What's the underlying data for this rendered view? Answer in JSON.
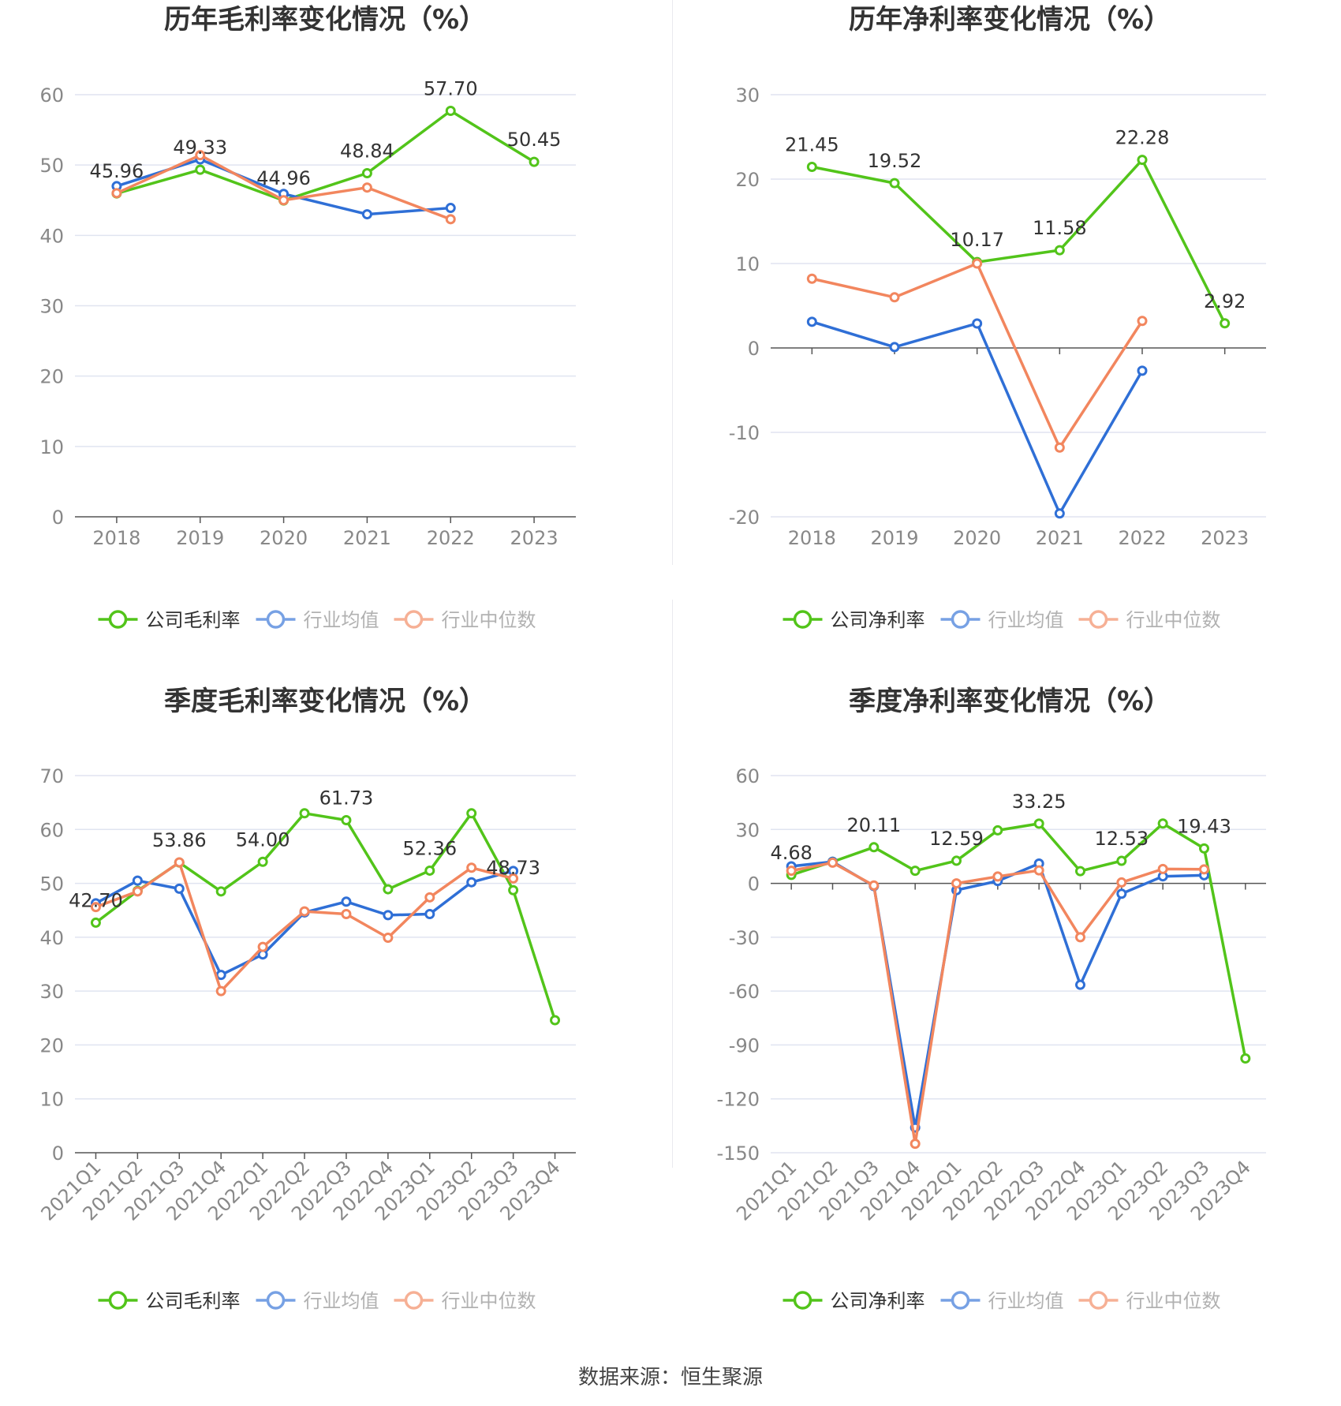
{
  "source_text": "数据来源：恒生聚源",
  "chart_data": [
    {
      "type": "line",
      "title": "历年毛利率变化情况（%）",
      "categories": [
        "2018",
        "2019",
        "2020",
        "2021",
        "2022",
        "2023"
      ],
      "ylim": [
        0,
        60
      ],
      "yticks": [
        0,
        10,
        20,
        30,
        40,
        50,
        60
      ],
      "grid": true,
      "legend_position": "bottom",
      "series": [
        {
          "name": "公司毛利率",
          "color": "#52c41a",
          "values": [
            45.96,
            49.33,
            44.96,
            48.84,
            57.7,
            50.45
          ],
          "labels": [
            "45.96",
            "49.33",
            "44.96",
            "48.84",
            "57.70",
            "50.45"
          ]
        },
        {
          "name": "行业均值",
          "color": "#2f6fd6",
          "values": [
            47.0,
            50.8,
            45.9,
            43.0,
            43.9,
            null
          ]
        },
        {
          "name": "行业中位数",
          "color": "#f2865e",
          "values": [
            46.0,
            51.4,
            45.0,
            46.8,
            42.3,
            null
          ]
        }
      ]
    },
    {
      "type": "line",
      "title": "历年净利率变化情况（%）",
      "categories": [
        "2018",
        "2019",
        "2020",
        "2021",
        "2022",
        "2023"
      ],
      "ylim": [
        -20,
        30
      ],
      "yticks": [
        -20,
        -10,
        0,
        10,
        20,
        30
      ],
      "grid": true,
      "legend_position": "bottom",
      "series": [
        {
          "name": "公司净利率",
          "color": "#52c41a",
          "values": [
            21.45,
            19.52,
            10.17,
            11.58,
            22.28,
            2.92
          ],
          "labels": [
            "21.45",
            "19.52",
            "10.17",
            "11.58",
            "22.28",
            "2.92"
          ]
        },
        {
          "name": "行业均值",
          "color": "#2f6fd6",
          "values": [
            3.1,
            0.1,
            2.9,
            -19.6,
            -2.7,
            null
          ]
        },
        {
          "name": "行业中位数",
          "color": "#f2865e",
          "values": [
            8.2,
            6.0,
            10.0,
            -11.8,
            3.2,
            null
          ]
        }
      ]
    },
    {
      "type": "line",
      "title": "季度毛利率变化情况（%）",
      "categories": [
        "2021Q1",
        "2021Q2",
        "2021Q3",
        "2021Q4",
        "2022Q1",
        "2022Q2",
        "2022Q3",
        "2022Q4",
        "2023Q1",
        "2023Q2",
        "2023Q3",
        "2023Q4"
      ],
      "ylim": [
        0,
        70
      ],
      "yticks": [
        0,
        10,
        20,
        30,
        40,
        50,
        60,
        70
      ],
      "grid": true,
      "legend_position": "bottom",
      "series": [
        {
          "name": "公司毛利率",
          "color": "#52c41a",
          "values": [
            42.7,
            48.6,
            53.86,
            48.5,
            54.0,
            63.0,
            61.73,
            48.9,
            52.36,
            63.0,
            48.73,
            24.6
          ],
          "labels": [
            "42.70",
            "",
            "53.86",
            "",
            "54.00",
            "",
            "61.73",
            "",
            "52.36",
            "",
            "48.73",
            ""
          ]
        },
        {
          "name": "行业均值",
          "color": "#2f6fd6",
          "values": [
            46.3,
            50.5,
            49.0,
            33.0,
            36.8,
            44.6,
            46.6,
            44.1,
            44.3,
            50.2,
            52.3,
            null
          ]
        },
        {
          "name": "行业中位数",
          "color": "#f2865e",
          "values": [
            45.6,
            48.5,
            53.9,
            30.0,
            38.2,
            44.8,
            44.3,
            39.9,
            47.4,
            52.9,
            50.9,
            null
          ]
        }
      ]
    },
    {
      "type": "line",
      "title": "季度净利率变化情况（%）",
      "categories": [
        "2021Q1",
        "2021Q2",
        "2021Q3",
        "2021Q4",
        "2022Q1",
        "2022Q2",
        "2022Q3",
        "2022Q4",
        "2023Q1",
        "2023Q2",
        "2023Q3",
        "2023Q4"
      ],
      "ylim": [
        -150,
        60
      ],
      "yticks": [
        -150,
        -120,
        -90,
        -60,
        -30,
        0,
        30,
        60
      ],
      "grid": true,
      "legend_position": "bottom",
      "series": [
        {
          "name": "公司净利率",
          "color": "#52c41a",
          "values": [
            4.68,
            12.0,
            20.11,
            7.0,
            12.59,
            29.5,
            33.25,
            6.8,
            12.53,
            33.3,
            19.43,
            -97.5
          ],
          "labels": [
            "4.68",
            "",
            "20.11",
            "",
            "12.59",
            "",
            "33.25",
            "",
            "12.53",
            "",
            "19.43",
            ""
          ]
        },
        {
          "name": "行业均值",
          "color": "#2f6fd6",
          "values": [
            9.5,
            12.0,
            -1.5,
            -136.0,
            -3.8,
            1.3,
            11.0,
            -56.5,
            -5.8,
            3.9,
            4.5,
            null
          ]
        },
        {
          "name": "行业中位数",
          "color": "#f2865e",
          "values": [
            7.0,
            11.5,
            -1.2,
            -145.0,
            0.0,
            3.8,
            7.2,
            -30.0,
            0.5,
            8.0,
            7.8,
            null
          ]
        }
      ]
    }
  ]
}
